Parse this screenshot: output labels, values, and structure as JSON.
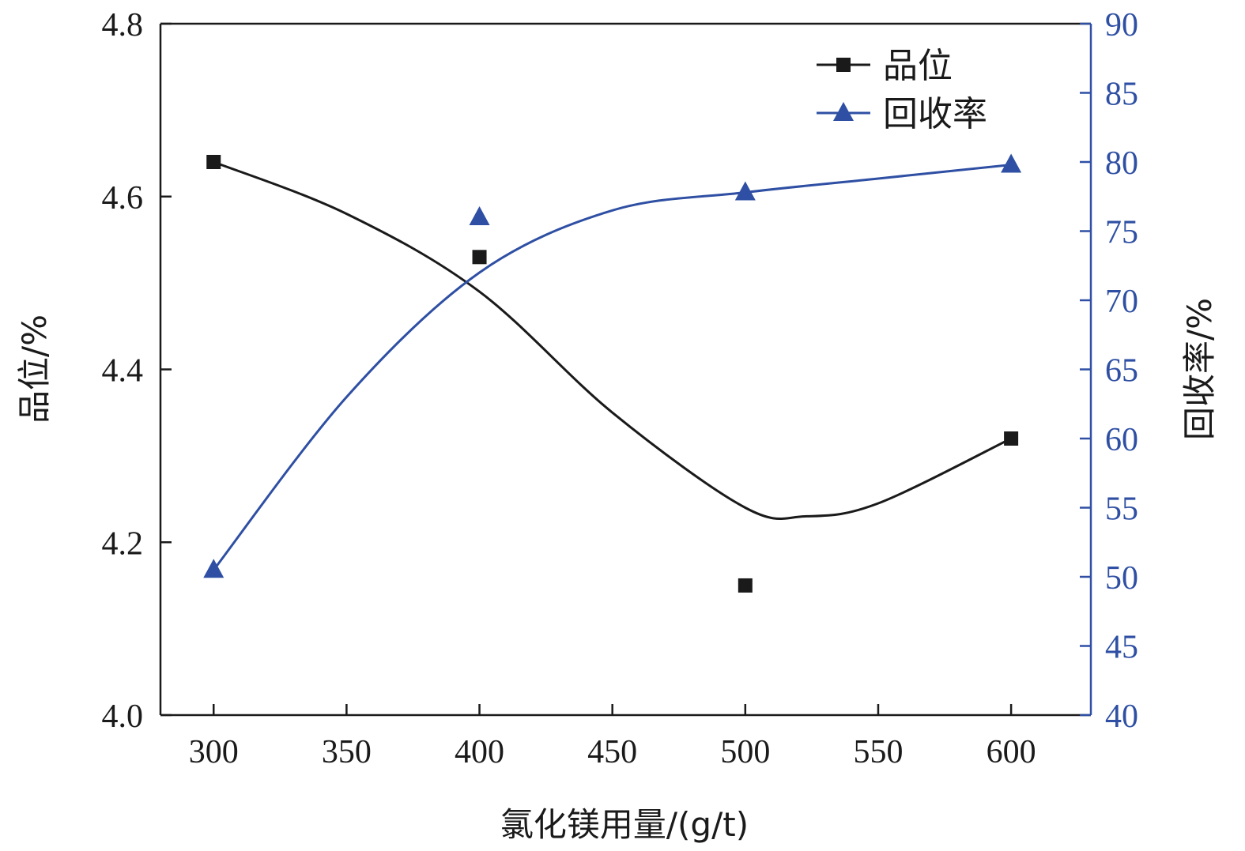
{
  "chart_data": {
    "type": "line",
    "xlabel": "氯化镁用量/(g/t)",
    "ylabel_left": "品位/%",
    "ylabel_right": "回收率/%",
    "x": [
      300,
      400,
      500,
      600
    ],
    "xlim": [
      280,
      630
    ],
    "xticks": [
      300,
      350,
      400,
      450,
      500,
      550,
      600
    ],
    "ylim_left": [
      4.0,
      4.8
    ],
    "yticks_left": [
      "4.0",
      "4.2",
      "4.4",
      "4.6",
      "4.8"
    ],
    "ylim_right": [
      40,
      90
    ],
    "yticks_right": [
      "40",
      "45",
      "50",
      "55",
      "60",
      "65",
      "70",
      "75",
      "80",
      "85",
      "90"
    ],
    "grid": false,
    "legend_position": "top-right",
    "series": [
      {
        "name": "品位",
        "axis": "left",
        "marker": "square",
        "color": "#1a1a1a",
        "values": [
          4.64,
          4.53,
          4.15,
          4.32
        ],
        "curve_x": [
          300,
          350,
          400,
          450,
          500,
          523,
          550,
          600
        ],
        "curve_y": [
          4.64,
          4.58,
          4.49,
          4.35,
          4.24,
          4.23,
          4.245,
          4.32
        ]
      },
      {
        "name": "回收率",
        "axis": "right",
        "marker": "triangle",
        "color": "#2e4fa3",
        "values": [
          50.5,
          76.0,
          77.8,
          79.8
        ],
        "curve_x": [
          300,
          350,
          400,
          450,
          500,
          550,
          600
        ],
        "curve_y": [
          50.5,
          63.0,
          72.0,
          76.5,
          77.8,
          78.8,
          79.8
        ]
      }
    ]
  }
}
